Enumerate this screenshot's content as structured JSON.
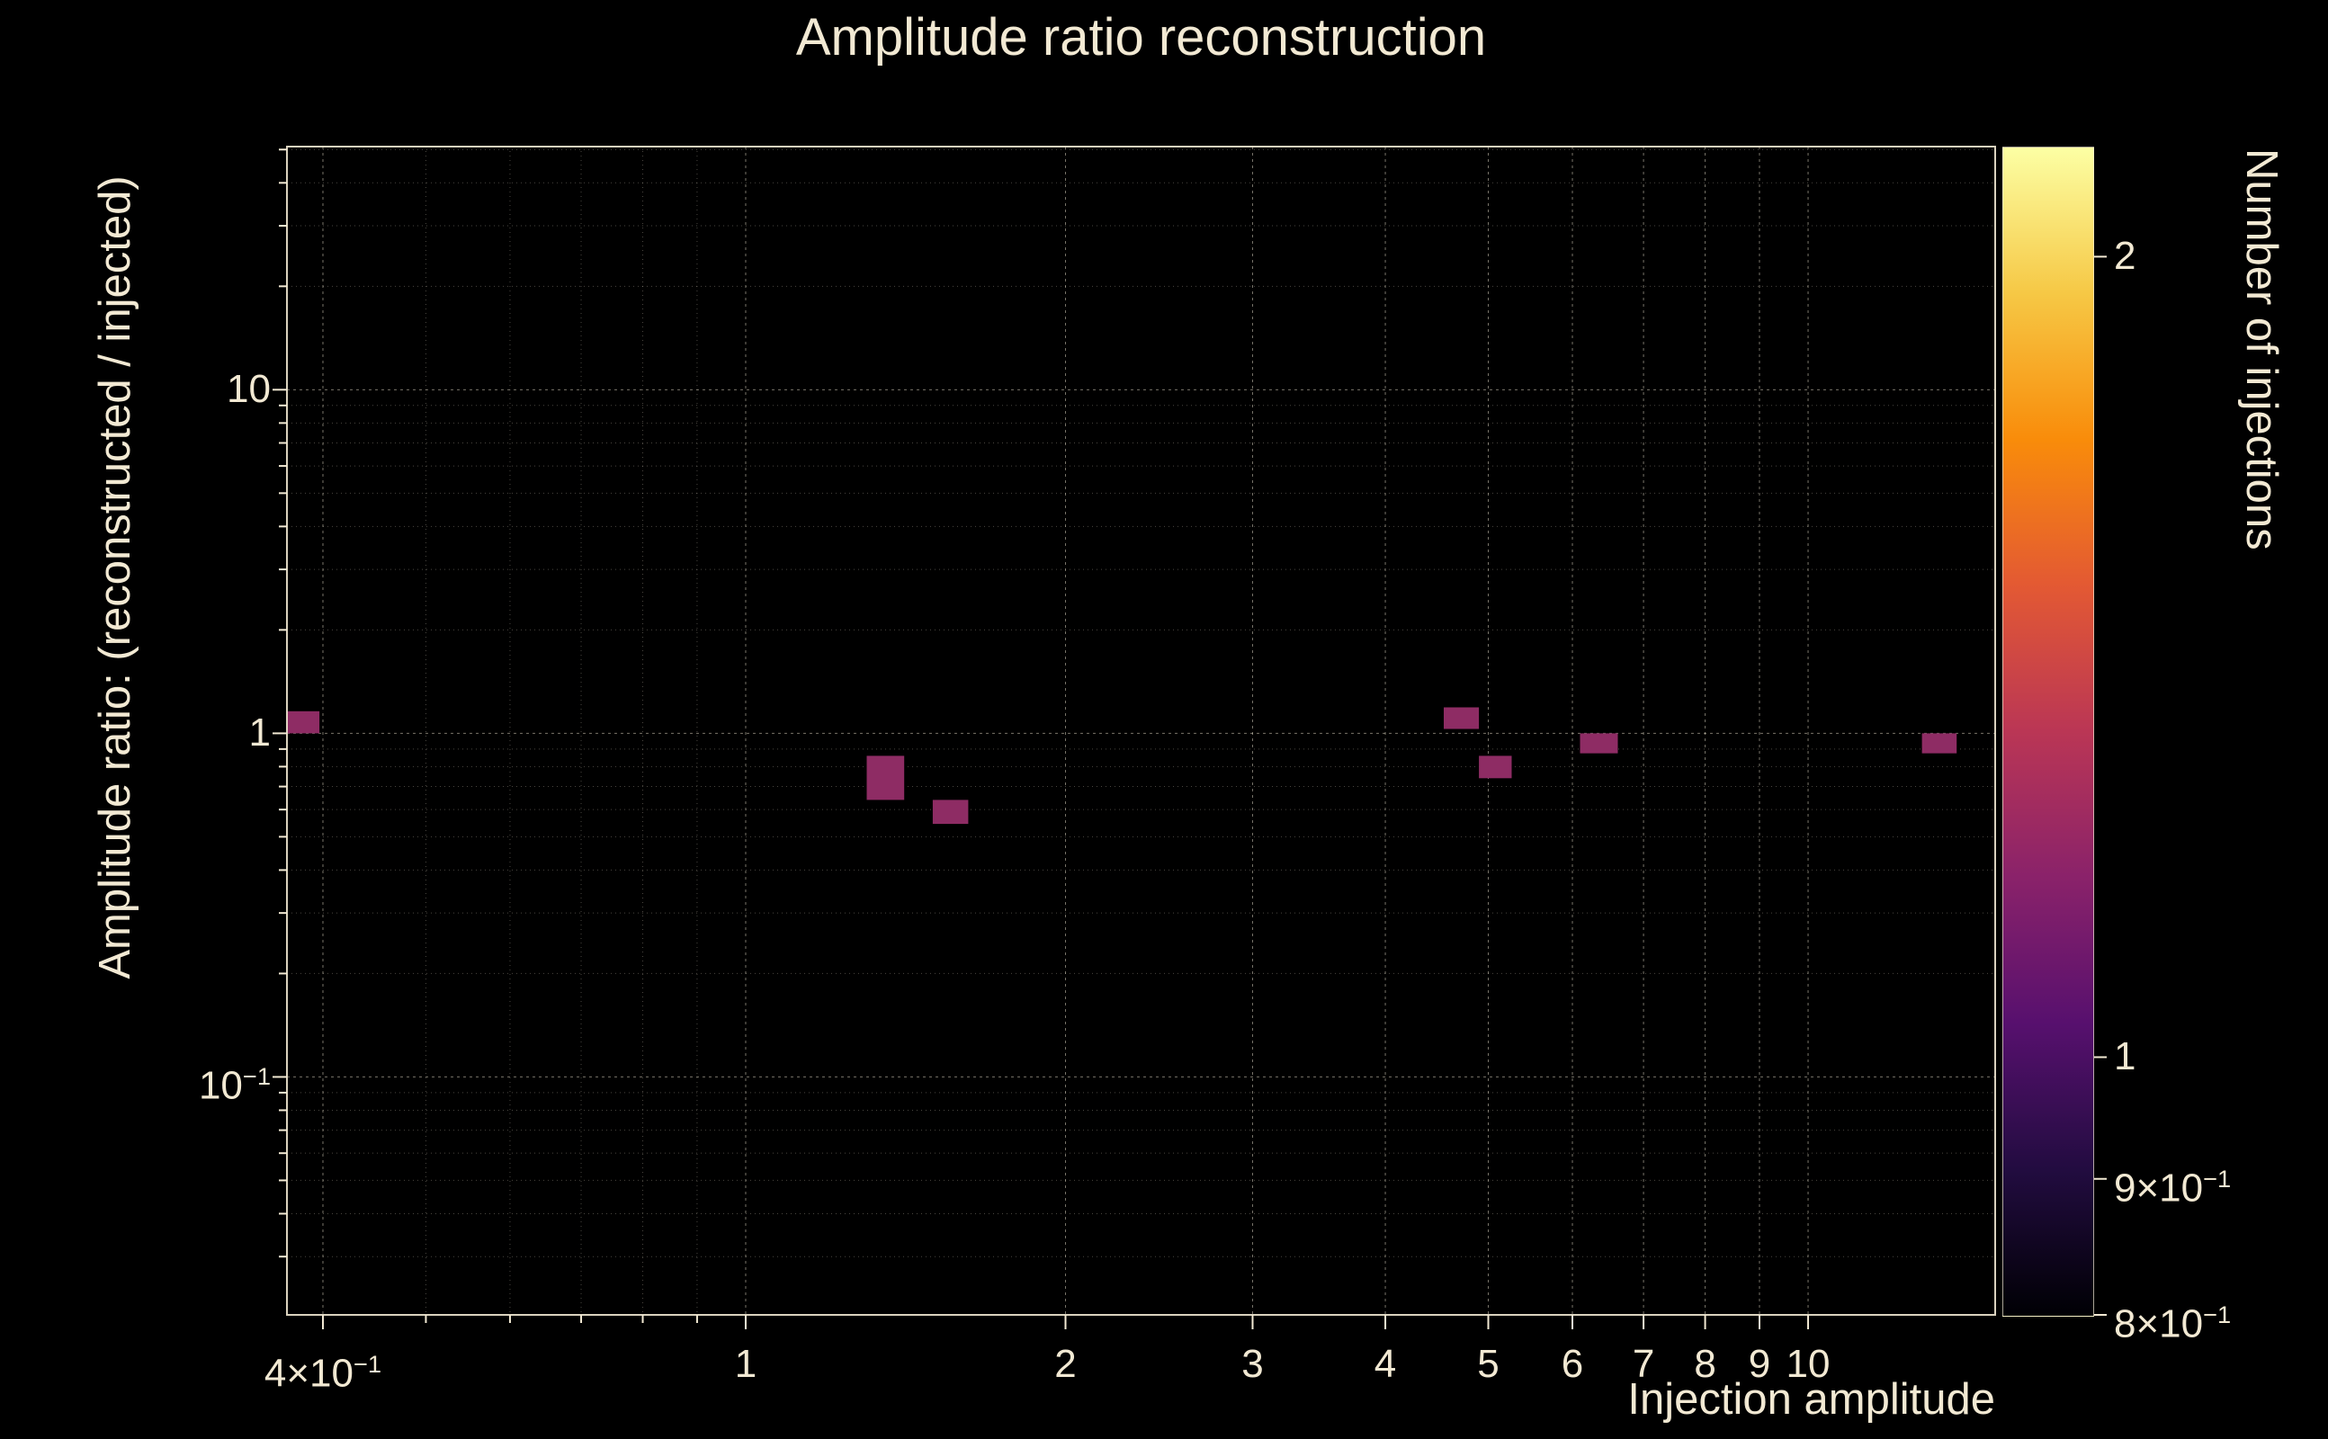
{
  "figure": {
    "bg": "#000000",
    "fg": "#f2e9d3"
  },
  "chart_data": {
    "type": "heatmap",
    "title": "Amplitude ratio reconstruction",
    "xlabel": "Injection amplitude",
    "ylabel": "Amplitude ratio: (reconstructed / injected)",
    "colorbar_label": "Number of injections",
    "x_scale": "log",
    "y_scale": "log",
    "xlim": [
      0.37,
      15
    ],
    "ylim": [
      0.0203,
      51
    ],
    "grid": true,
    "x_ticks_major": [
      {
        "v": 0.4,
        "t": "4×10",
        "s": "−1"
      },
      {
        "v": 1,
        "t": "1"
      },
      {
        "v": 2,
        "t": "2"
      },
      {
        "v": 3,
        "t": "3"
      },
      {
        "v": 4,
        "t": "4"
      },
      {
        "v": 5,
        "t": "5"
      },
      {
        "v": 6,
        "t": "6"
      },
      {
        "v": 7,
        "t": "7"
      },
      {
        "v": 8,
        "t": "8"
      },
      {
        "v": 9,
        "t": "9"
      },
      {
        "v": 10,
        "t": "10"
      }
    ],
    "x_ticks_minor": [
      0.5,
      0.6,
      0.7,
      0.8,
      0.9
    ],
    "y_ticks_major": [
      {
        "v": 10,
        "t": "10"
      },
      {
        "v": 1,
        "t": "1"
      },
      {
        "v": 0.1,
        "t": "10",
        "s": "−1"
      }
    ],
    "y_ticks_minor": [
      0.03,
      0.04,
      0.05,
      0.06,
      0.07,
      0.08,
      0.09,
      0.2,
      0.3,
      0.4,
      0.5,
      0.6,
      0.7,
      0.8,
      0.9,
      2,
      3,
      4,
      5,
      6,
      7,
      8,
      9,
      20,
      30,
      40,
      50
    ],
    "bin_color": "#8e2c64",
    "bins": [
      {
        "x0": 0.368,
        "x1": 0.397,
        "y0": 1.0,
        "y1": 1.16,
        "count": 1
      },
      {
        "x0": 1.3,
        "x1": 1.41,
        "y0": 0.64,
        "y1": 0.86,
        "count": 1
      },
      {
        "x0": 1.5,
        "x1": 1.62,
        "y0": 0.545,
        "y1": 0.64,
        "count": 1
      },
      {
        "x0": 4.54,
        "x1": 4.9,
        "y0": 1.03,
        "y1": 1.19,
        "count": 1
      },
      {
        "x0": 4.9,
        "x1": 5.26,
        "y0": 0.74,
        "y1": 0.86,
        "count": 1
      },
      {
        "x0": 6.1,
        "x1": 6.62,
        "y0": 0.875,
        "y1": 1.0,
        "count": 1
      },
      {
        "x0": 12.8,
        "x1": 13.8,
        "y0": 0.875,
        "y1": 1.0,
        "count": 1
      }
    ],
    "colorbar": {
      "scale": "log",
      "lim": [
        0.8,
        2.2
      ],
      "ticks": [
        {
          "v": 2,
          "t": "2"
        },
        {
          "v": 1,
          "t": "1"
        },
        {
          "v": 0.9,
          "t": "9×10",
          "s": "−1"
        },
        {
          "v": 0.8,
          "t": "8×10",
          "s": "−1"
        }
      ],
      "colormap": [
        [
          0,
          "#000004"
        ],
        [
          0.125,
          "#220c40"
        ],
        [
          0.25,
          "#57106e"
        ],
        [
          0.375,
          "#8a226a"
        ],
        [
          0.5,
          "#ba3655"
        ],
        [
          0.625,
          "#e35933"
        ],
        [
          0.75,
          "#f98c0a"
        ],
        [
          0.875,
          "#f6c845"
        ],
        [
          1,
          "#fcffa4"
        ]
      ]
    }
  }
}
